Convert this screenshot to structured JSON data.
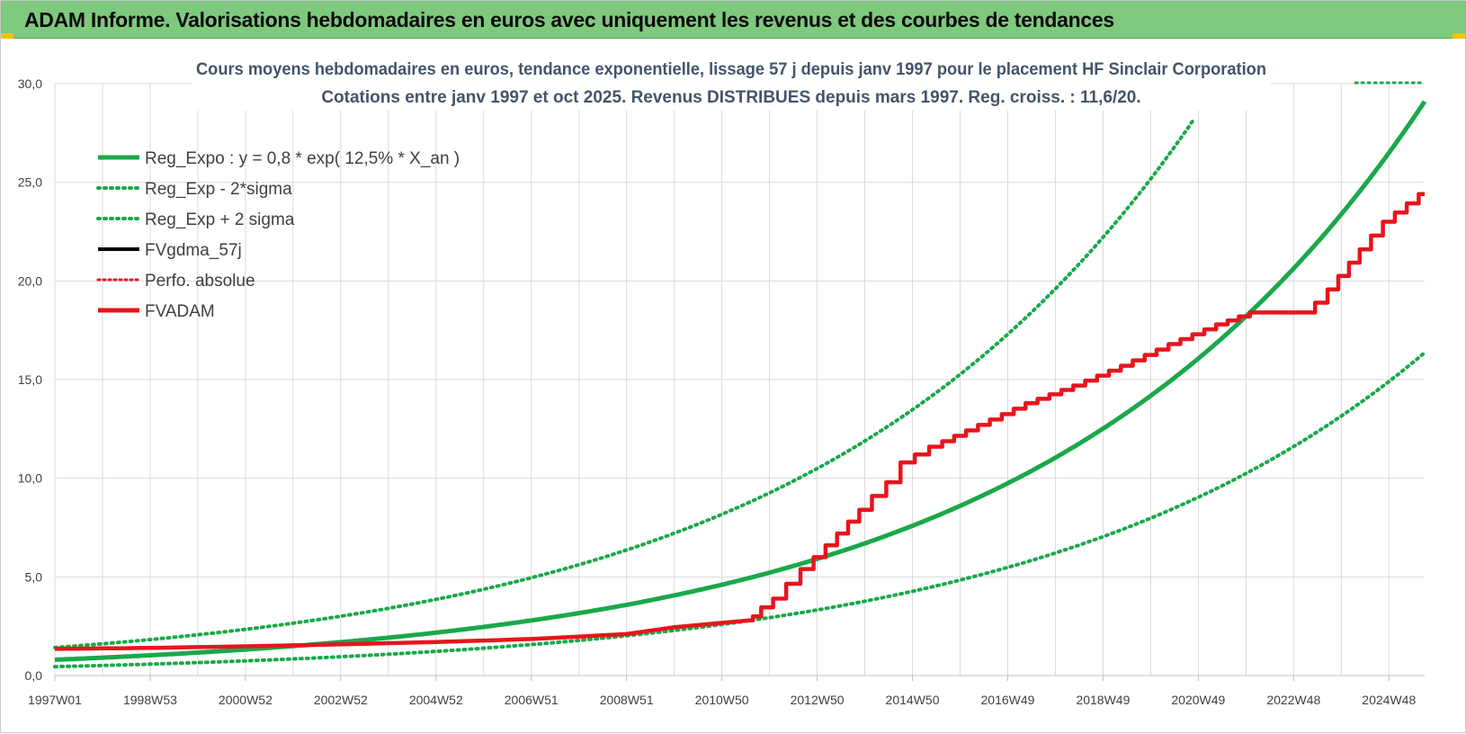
{
  "banner": {
    "title": "ADAM Informe. Valorisations hebdomadaires en euros avec uniquement les revenus et des courbes de tendances"
  },
  "colors": {
    "banner": "#7dc97d",
    "reg_green": "#1aa84a",
    "red": "#e8141c",
    "black": "#000000",
    "grid": "#d9d9d9",
    "title": "#44546a"
  },
  "chart_data": {
    "type": "line",
    "title_line1": "Cours moyens hebdomadaires en euros, tendance exponentielle, lissage 57 j depuis janv 1997 pour le placement HF Sinclair Corporation",
    "title_line2": "Cotations entre janv 1997 et oct 2025. Revenus DISTRIBUES depuis mars 1997. Reg. croiss. : 11,6/20.",
    "x_tick_labels": [
      "1997W01",
      "1998W53",
      "2000W52",
      "2002W52",
      "2004W52",
      "2006W51",
      "2008W51",
      "2010W50",
      "2012W50",
      "2014W50",
      "2016W49",
      "2018W49",
      "2020W49",
      "2022W48",
      "2024W48"
    ],
    "x_tick_years": [
      0,
      2,
      4,
      6,
      8,
      10,
      12,
      14,
      16,
      18,
      20,
      22,
      24,
      26,
      28
    ],
    "xlim_years": [
      0,
      28.75
    ],
    "y_tick_labels": [
      "0,0",
      "5,0",
      "10,0",
      "15,0",
      "20,0",
      "25,0",
      "30,0"
    ],
    "ylim": [
      0,
      30
    ],
    "grid": true,
    "legend_position": "top-left",
    "series": [
      {
        "name": "Reg_Expo : y = 0,8 * exp( 12,5% *  X_an )",
        "style": "solid-green",
        "a": 0.8,
        "b": 0.125
      },
      {
        "name": "Reg_Exp - 2*sigma",
        "style": "dotted-green",
        "a": 0.45,
        "b": 0.125
      },
      {
        "name": "Reg_Exp + 2 sigma",
        "style": "dotted-green",
        "a": 1.42,
        "b": 0.125
      },
      {
        "name": "FVgdma_57j",
        "style": "solid-black"
      },
      {
        "name": "Perfo. absolue",
        "style": "dotted-red"
      },
      {
        "name": "FVADAM",
        "style": "solid-red",
        "points": [
          [
            0,
            1.35
          ],
          [
            2,
            1.4
          ],
          [
            4,
            1.48
          ],
          [
            6,
            1.58
          ],
          [
            8,
            1.7
          ],
          [
            10,
            1.85
          ],
          [
            12,
            2.1
          ],
          [
            13,
            2.45
          ],
          [
            14.6,
            2.8
          ],
          [
            14.7,
            3.0
          ],
          [
            15.2,
            3.9
          ],
          [
            15.8,
            5.4
          ],
          [
            16.3,
            6.6
          ],
          [
            17,
            8.4
          ],
          [
            17.6,
            9.8
          ],
          [
            17.9,
            10.8
          ],
          [
            18.5,
            11.6
          ],
          [
            19.5,
            12.7
          ],
          [
            20.5,
            13.8
          ],
          [
            21.5,
            14.7
          ],
          [
            22.5,
            15.7
          ],
          [
            23.5,
            16.8
          ],
          [
            24.5,
            17.8
          ],
          [
            25.2,
            18.4
          ],
          [
            26.3,
            18.4
          ],
          [
            26.6,
            18.9
          ],
          [
            27.5,
            21.6
          ],
          [
            28.0,
            23.0
          ],
          [
            28.75,
            24.4
          ]
        ]
      }
    ]
  }
}
